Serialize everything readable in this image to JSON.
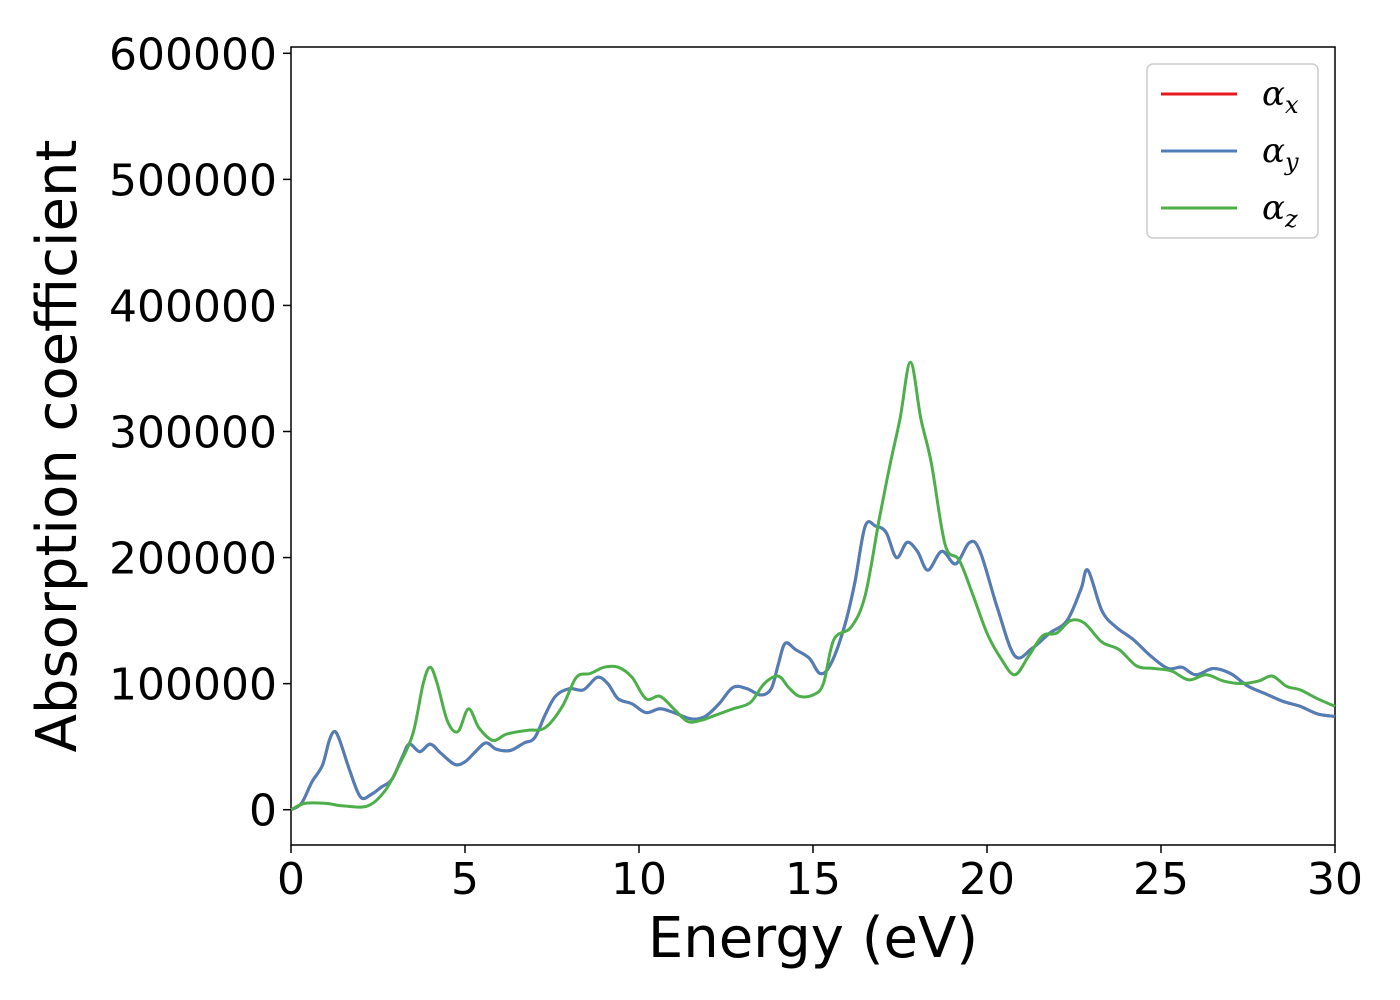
{
  "chart_data": {
    "type": "line",
    "xlabel": "Energy (eV)",
    "ylabel": "Absorption coefficient",
    "xlim": [
      0,
      30
    ],
    "ylim": [
      -28000,
      605000
    ],
    "xticks": [
      "0",
      "5",
      "10",
      "15",
      "20",
      "25",
      "30"
    ],
    "yticks": [
      "0",
      "100000",
      "200000",
      "300000",
      "400000",
      "500000",
      "600000"
    ],
    "grid": false,
    "legend_position": "top-right",
    "series": [
      {
        "name": "α",
        "sub": "x",
        "color": "#e41a1c",
        "points": [
          [
            0,
            0
          ],
          [
            0.3,
            5000
          ],
          [
            0.6,
            22000
          ],
          [
            0.9,
            35000
          ],
          [
            1.1,
            55000
          ],
          [
            1.25,
            62000
          ],
          [
            1.4,
            55000
          ],
          [
            1.7,
            30000
          ],
          [
            2.0,
            10000
          ],
          [
            2.3,
            12000
          ],
          [
            2.6,
            18000
          ],
          [
            2.9,
            24000
          ],
          [
            3.2,
            42000
          ],
          [
            3.4,
            52000
          ],
          [
            3.7,
            46000
          ],
          [
            4.0,
            52000
          ],
          [
            4.3,
            45000
          ],
          [
            4.7,
            36000
          ],
          [
            5.0,
            38000
          ],
          [
            5.3,
            46000
          ],
          [
            5.6,
            53000
          ],
          [
            5.9,
            48000
          ],
          [
            6.3,
            47000
          ],
          [
            6.7,
            53000
          ],
          [
            7.0,
            57000
          ],
          [
            7.3,
            75000
          ],
          [
            7.6,
            90000
          ],
          [
            8.0,
            96000
          ],
          [
            8.4,
            95000
          ],
          [
            8.8,
            105000
          ],
          [
            9.1,
            100000
          ],
          [
            9.4,
            88000
          ],
          [
            9.8,
            84000
          ],
          [
            10.2,
            77000
          ],
          [
            10.6,
            80000
          ],
          [
            11.0,
            77000
          ],
          [
            11.5,
            72000
          ],
          [
            11.9,
            74000
          ],
          [
            12.3,
            84000
          ],
          [
            12.7,
            97000
          ],
          [
            13.1,
            96000
          ],
          [
            13.5,
            91000
          ],
          [
            13.8,
            96000
          ],
          [
            14.0,
            115000
          ],
          [
            14.2,
            132000
          ],
          [
            14.5,
            127000
          ],
          [
            14.9,
            120000
          ],
          [
            15.2,
            108000
          ],
          [
            15.5,
            115000
          ],
          [
            15.9,
            145000
          ],
          [
            16.2,
            180000
          ],
          [
            16.5,
            225000
          ],
          [
            16.8,
            225000
          ],
          [
            17.1,
            220000
          ],
          [
            17.4,
            200000
          ],
          [
            17.7,
            212000
          ],
          [
            18.0,
            205000
          ],
          [
            18.3,
            190000
          ],
          [
            18.7,
            205000
          ],
          [
            19.1,
            195000
          ],
          [
            19.5,
            212000
          ],
          [
            19.8,
            205000
          ],
          [
            20.3,
            160000
          ],
          [
            20.8,
            122000
          ],
          [
            21.3,
            128000
          ],
          [
            21.8,
            140000
          ],
          [
            22.3,
            150000
          ],
          [
            22.7,
            175000
          ],
          [
            22.9,
            190000
          ],
          [
            23.3,
            158000
          ],
          [
            23.7,
            145000
          ],
          [
            24.2,
            135000
          ],
          [
            24.7,
            122000
          ],
          [
            25.2,
            112000
          ],
          [
            25.6,
            113000
          ],
          [
            26.0,
            107000
          ],
          [
            26.5,
            112000
          ],
          [
            27.0,
            108000
          ],
          [
            27.5,
            98000
          ],
          [
            28.0,
            92000
          ],
          [
            28.5,
            86000
          ],
          [
            29.0,
            82000
          ],
          [
            29.5,
            76000
          ],
          [
            30.0,
            74000
          ]
        ]
      },
      {
        "name": "α",
        "sub": "y",
        "color": "#4f7fb8",
        "points": [
          [
            0,
            0
          ],
          [
            0.3,
            5000
          ],
          [
            0.6,
            22000
          ],
          [
            0.9,
            35000
          ],
          [
            1.1,
            55000
          ],
          [
            1.25,
            62000
          ],
          [
            1.4,
            55000
          ],
          [
            1.7,
            30000
          ],
          [
            2.0,
            10000
          ],
          [
            2.3,
            12000
          ],
          [
            2.6,
            18000
          ],
          [
            2.9,
            24000
          ],
          [
            3.2,
            42000
          ],
          [
            3.4,
            52000
          ],
          [
            3.7,
            46000
          ],
          [
            4.0,
            52000
          ],
          [
            4.3,
            45000
          ],
          [
            4.7,
            36000
          ],
          [
            5.0,
            38000
          ],
          [
            5.3,
            46000
          ],
          [
            5.6,
            53000
          ],
          [
            5.9,
            48000
          ],
          [
            6.3,
            47000
          ],
          [
            6.7,
            53000
          ],
          [
            7.0,
            57000
          ],
          [
            7.3,
            75000
          ],
          [
            7.6,
            90000
          ],
          [
            8.0,
            96000
          ],
          [
            8.4,
            95000
          ],
          [
            8.8,
            105000
          ],
          [
            9.1,
            100000
          ],
          [
            9.4,
            88000
          ],
          [
            9.8,
            84000
          ],
          [
            10.2,
            77000
          ],
          [
            10.6,
            80000
          ],
          [
            11.0,
            77000
          ],
          [
            11.5,
            72000
          ],
          [
            11.9,
            74000
          ],
          [
            12.3,
            84000
          ],
          [
            12.7,
            97000
          ],
          [
            13.1,
            96000
          ],
          [
            13.5,
            91000
          ],
          [
            13.8,
            96000
          ],
          [
            14.0,
            115000
          ],
          [
            14.2,
            132000
          ],
          [
            14.5,
            127000
          ],
          [
            14.9,
            120000
          ],
          [
            15.2,
            108000
          ],
          [
            15.5,
            115000
          ],
          [
            15.9,
            145000
          ],
          [
            16.2,
            180000
          ],
          [
            16.5,
            225000
          ],
          [
            16.8,
            225000
          ],
          [
            17.1,
            220000
          ],
          [
            17.4,
            200000
          ],
          [
            17.7,
            212000
          ],
          [
            18.0,
            205000
          ],
          [
            18.3,
            190000
          ],
          [
            18.7,
            205000
          ],
          [
            19.1,
            195000
          ],
          [
            19.5,
            212000
          ],
          [
            19.8,
            205000
          ],
          [
            20.3,
            160000
          ],
          [
            20.8,
            122000
          ],
          [
            21.3,
            128000
          ],
          [
            21.8,
            140000
          ],
          [
            22.3,
            150000
          ],
          [
            22.7,
            175000
          ],
          [
            22.9,
            190000
          ],
          [
            23.3,
            158000
          ],
          [
            23.7,
            145000
          ],
          [
            24.2,
            135000
          ],
          [
            24.7,
            122000
          ],
          [
            25.2,
            112000
          ],
          [
            25.6,
            113000
          ],
          [
            26.0,
            107000
          ],
          [
            26.5,
            112000
          ],
          [
            27.0,
            108000
          ],
          [
            27.5,
            98000
          ],
          [
            28.0,
            92000
          ],
          [
            28.5,
            86000
          ],
          [
            29.0,
            82000
          ],
          [
            29.5,
            76000
          ],
          [
            30.0,
            74000
          ]
        ]
      },
      {
        "name": "α",
        "sub": "z",
        "color": "#4daf4a",
        "points": [
          [
            0,
            0
          ],
          [
            0.4,
            5000
          ],
          [
            1.0,
            5000
          ],
          [
            1.5,
            3000
          ],
          [
            2.2,
            3000
          ],
          [
            2.7,
            15000
          ],
          [
            3.1,
            35000
          ],
          [
            3.5,
            60000
          ],
          [
            3.8,
            100000
          ],
          [
            4.0,
            113000
          ],
          [
            4.2,
            100000
          ],
          [
            4.5,
            70000
          ],
          [
            4.8,
            62000
          ],
          [
            5.1,
            80000
          ],
          [
            5.4,
            65000
          ],
          [
            5.8,
            55000
          ],
          [
            6.2,
            60000
          ],
          [
            6.8,
            63000
          ],
          [
            7.3,
            65000
          ],
          [
            7.8,
            82000
          ],
          [
            8.2,
            105000
          ],
          [
            8.6,
            108000
          ],
          [
            9.0,
            113000
          ],
          [
            9.4,
            113000
          ],
          [
            9.8,
            105000
          ],
          [
            10.2,
            88000
          ],
          [
            10.6,
            90000
          ],
          [
            11.0,
            80000
          ],
          [
            11.4,
            70000
          ],
          [
            11.8,
            71000
          ],
          [
            12.2,
            75000
          ],
          [
            12.7,
            80000
          ],
          [
            13.2,
            85000
          ],
          [
            13.6,
            100000
          ],
          [
            14.0,
            106000
          ],
          [
            14.3,
            97000
          ],
          [
            14.6,
            90000
          ],
          [
            15.0,
            91000
          ],
          [
            15.3,
            100000
          ],
          [
            15.6,
            135000
          ],
          [
            16.1,
            145000
          ],
          [
            16.5,
            170000
          ],
          [
            16.9,
            230000
          ],
          [
            17.2,
            272000
          ],
          [
            17.5,
            310000
          ],
          [
            17.8,
            355000
          ],
          [
            18.1,
            310000
          ],
          [
            18.4,
            275000
          ],
          [
            18.8,
            210000
          ],
          [
            19.2,
            198000
          ],
          [
            19.6,
            170000
          ],
          [
            20.0,
            140000
          ],
          [
            20.4,
            120000
          ],
          [
            20.8,
            107000
          ],
          [
            21.2,
            122000
          ],
          [
            21.6,
            138000
          ],
          [
            22.0,
            140000
          ],
          [
            22.4,
            150000
          ],
          [
            22.8,
            148000
          ],
          [
            23.3,
            133000
          ],
          [
            23.8,
            127000
          ],
          [
            24.3,
            114000
          ],
          [
            24.8,
            112000
          ],
          [
            25.3,
            110000
          ],
          [
            25.8,
            103000
          ],
          [
            26.3,
            107000
          ],
          [
            26.8,
            102000
          ],
          [
            27.3,
            100000
          ],
          [
            27.8,
            102000
          ],
          [
            28.2,
            106000
          ],
          [
            28.6,
            98000
          ],
          [
            29.0,
            95000
          ],
          [
            29.5,
            88000
          ],
          [
            30.0,
            82000
          ]
        ]
      }
    ]
  }
}
